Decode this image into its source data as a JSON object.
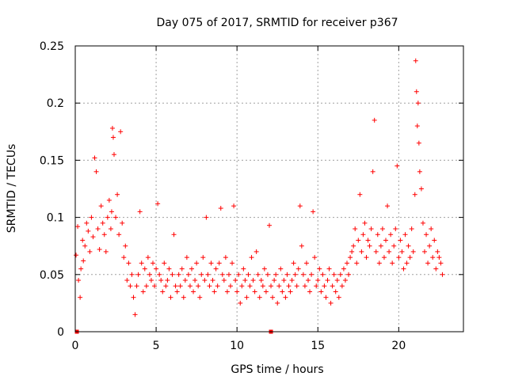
{
  "chart_data": {
    "type": "scatter",
    "title": "Day 075 of 2017, SRMTID for receiver p367",
    "xlabel": "GPS time / hours",
    "ylabel": "SRMTID / TECUs",
    "xlim": [
      0,
      24
    ],
    "ylim": [
      0,
      0.25
    ],
    "x_ticks": [
      0,
      5,
      10,
      15,
      20
    ],
    "x_tick_labels": [
      "0",
      "5",
      "10",
      "15",
      "20"
    ],
    "y_ticks": [
      0,
      0.05,
      0.1,
      0.15,
      0.2,
      0.25
    ],
    "y_tick_labels": [
      "0",
      "0.05",
      "0.1",
      "0.15",
      "0.2",
      "0.25"
    ],
    "grid": true,
    "marker": "plus",
    "color": "#ff0000",
    "series": [
      {
        "name": "SRMTID",
        "x": [
          0.05,
          0.15,
          0.2,
          0.3,
          0.35,
          0.45,
          0.5,
          0.6,
          0.7,
          0.8,
          0.9,
          1.0,
          1.1,
          1.2,
          1.3,
          1.4,
          1.5,
          1.6,
          1.7,
          1.8,
          1.9,
          2.0,
          2.1,
          2.2,
          2.25,
          2.3,
          2.35,
          2.4,
          2.5,
          2.6,
          2.7,
          2.8,
          2.9,
          3.0,
          3.1,
          3.2,
          3.3,
          3.4,
          3.5,
          3.6,
          3.7,
          3.8,
          3.9,
          4.0,
          4.1,
          4.2,
          4.3,
          4.4,
          4.5,
          4.6,
          4.7,
          4.8,
          4.9,
          5.0,
          5.1,
          5.2,
          5.3,
          5.4,
          5.5,
          5.6,
          5.7,
          5.8,
          5.9,
          6.0,
          6.1,
          6.2,
          6.3,
          6.4,
          6.5,
          6.6,
          6.7,
          6.8,
          6.9,
          7.0,
          7.1,
          7.2,
          7.3,
          7.4,
          7.5,
          7.6,
          7.7,
          7.8,
          7.9,
          8.0,
          8.1,
          8.2,
          8.3,
          8.4,
          8.5,
          8.6,
          8.7,
          8.8,
          8.9,
          9.0,
          9.1,
          9.2,
          9.3,
          9.4,
          9.5,
          9.6,
          9.7,
          9.8,
          9.9,
          10.0,
          10.1,
          10.2,
          10.3,
          10.4,
          10.5,
          10.6,
          10.7,
          10.8,
          10.9,
          11.0,
          11.1,
          11.2,
          11.3,
          11.4,
          11.5,
          11.6,
          11.7,
          11.8,
          11.9,
          12.0,
          12.1,
          12.2,
          12.3,
          12.4,
          12.5,
          12.6,
          12.7,
          12.8,
          12.9,
          13.0,
          13.1,
          13.2,
          13.3,
          13.4,
          13.5,
          13.6,
          13.7,
          13.8,
          13.9,
          14.0,
          14.1,
          14.2,
          14.3,
          14.4,
          14.5,
          14.6,
          14.7,
          14.8,
          14.9,
          15.0,
          15.1,
          15.2,
          15.3,
          15.4,
          15.5,
          15.6,
          15.7,
          15.8,
          15.9,
          16.0,
          16.1,
          16.2,
          16.3,
          16.4,
          16.5,
          16.6,
          16.7,
          16.8,
          16.9,
          17.0,
          17.1,
          17.2,
          17.3,
          17.4,
          17.5,
          17.6,
          17.7,
          17.8,
          17.9,
          18.0,
          18.1,
          18.2,
          18.3,
          18.4,
          18.5,
          18.6,
          18.7,
          18.8,
          18.9,
          19.0,
          19.1,
          19.2,
          19.3,
          19.4,
          19.5,
          19.6,
          19.7,
          19.8,
          19.9,
          20.0,
          20.1,
          20.2,
          20.3,
          20.4,
          20.5,
          20.6,
          20.7,
          20.8,
          20.9,
          21.0,
          21.05,
          21.1,
          21.15,
          21.2,
          21.25,
          21.3,
          21.4,
          21.5,
          21.6,
          21.7,
          21.8,
          21.9,
          22.0,
          22.1,
          22.2,
          22.3,
          22.4,
          22.5,
          22.6,
          22.7
        ],
        "y": [
          0.067,
          0.092,
          0.045,
          0.03,
          0.055,
          0.08,
          0.062,
          0.075,
          0.095,
          0.088,
          0.07,
          0.1,
          0.083,
          0.152,
          0.14,
          0.09,
          0.072,
          0.11,
          0.095,
          0.085,
          0.07,
          0.1,
          0.115,
          0.09,
          0.105,
          0.178,
          0.17,
          0.155,
          0.1,
          0.12,
          0.085,
          0.175,
          0.095,
          0.065,
          0.075,
          0.045,
          0.06,
          0.04,
          0.05,
          0.03,
          0.015,
          0.04,
          0.05,
          0.105,
          0.06,
          0.035,
          0.055,
          0.04,
          0.065,
          0.05,
          0.045,
          0.06,
          0.04,
          0.055,
          0.112,
          0.05,
          0.045,
          0.035,
          0.06,
          0.04,
          0.045,
          0.055,
          0.03,
          0.05,
          0.085,
          0.04,
          0.035,
          0.05,
          0.04,
          0.055,
          0.03,
          0.045,
          0.065,
          0.05,
          0.04,
          0.055,
          0.035,
          0.045,
          0.06,
          0.04,
          0.03,
          0.05,
          0.065,
          0.045,
          0.1,
          0.05,
          0.04,
          0.06,
          0.045,
          0.035,
          0.055,
          0.04,
          0.06,
          0.108,
          0.05,
          0.045,
          0.065,
          0.035,
          0.05,
          0.04,
          0.06,
          0.11,
          0.045,
          0.035,
          0.05,
          0.025,
          0.04,
          0.055,
          0.045,
          0.03,
          0.05,
          0.04,
          0.065,
          0.045,
          0.035,
          0.07,
          0.05,
          0.03,
          0.045,
          0.04,
          0.055,
          0.035,
          0.05,
          0.093,
          0.04,
          0.03,
          0.045,
          0.05,
          0.025,
          0.04,
          0.055,
          0.035,
          0.045,
          0.03,
          0.05,
          0.04,
          0.035,
          0.045,
          0.06,
          0.05,
          0.04,
          0.055,
          0.11,
          0.075,
          0.05,
          0.04,
          0.06,
          0.045,
          0.035,
          0.05,
          0.105,
          0.065,
          0.04,
          0.045,
          0.055,
          0.035,
          0.05,
          0.04,
          0.03,
          0.045,
          0.055,
          0.025,
          0.04,
          0.05,
          0.035,
          0.045,
          0.03,
          0.05,
          0.04,
          0.055,
          0.045,
          0.06,
          0.05,
          0.065,
          0.07,
          0.075,
          0.09,
          0.06,
          0.08,
          0.12,
          0.07,
          0.085,
          0.095,
          0.065,
          0.08,
          0.075,
          0.09,
          0.14,
          0.185,
          0.07,
          0.085,
          0.06,
          0.075,
          0.09,
          0.065,
          0.08,
          0.11,
          0.07,
          0.085,
          0.06,
          0.075,
          0.09,
          0.145,
          0.065,
          0.08,
          0.07,
          0.055,
          0.085,
          0.06,
          0.075,
          0.065,
          0.09,
          0.07,
          0.12,
          0.237,
          0.21,
          0.18,
          0.2,
          0.165,
          0.14,
          0.125,
          0.095,
          0.07,
          0.085,
          0.06,
          0.075,
          0.09,
          0.065,
          0.08,
          0.055,
          0.07,
          0.065,
          0.06,
          0.05
        ]
      },
      {
        "name": "markers-at-zero",
        "x": [
          0.1,
          12.1
        ],
        "y": [
          0.0,
          0.0
        ]
      }
    ]
  }
}
